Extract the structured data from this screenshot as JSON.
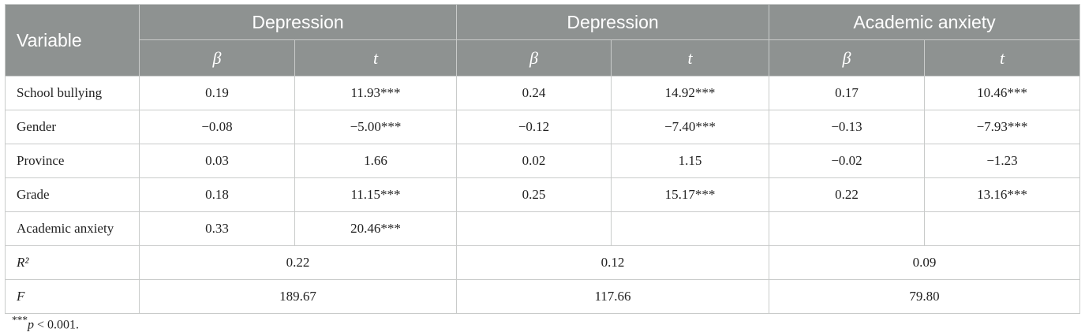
{
  "header": {
    "variable_label": "Variable",
    "groups": [
      "Depression",
      "Depression",
      "Academic anxiety"
    ],
    "sub_labels": [
      "β",
      "t",
      "β",
      "t",
      "β",
      "t"
    ]
  },
  "rows": [
    {
      "variable": "School bullying",
      "cells": [
        "0.19",
        "11.93***",
        "0.24",
        "14.92***",
        "0.17",
        "10.46***"
      ]
    },
    {
      "variable": "Gender",
      "cells": [
        "−0.08",
        "−5.00***",
        "−0.12",
        "−7.40***",
        "−0.13",
        "−7.93***"
      ]
    },
    {
      "variable": "Province",
      "cells": [
        "0.03",
        "1.66",
        "0.02",
        "1.15",
        "−0.02",
        "−1.23"
      ]
    },
    {
      "variable": "Grade",
      "cells": [
        "0.18",
        "11.15***",
        "0.25",
        "15.17***",
        "0.22",
        "13.16***"
      ]
    },
    {
      "variable": "Academic anxiety",
      "cells": [
        "0.33",
        "20.46***",
        "",
        "",
        "",
        ""
      ]
    }
  ],
  "summary": [
    {
      "label": "R²",
      "values": [
        "0.22",
        "0.12",
        "0.09"
      ]
    },
    {
      "label": "F",
      "values": [
        "189.67",
        "117.66",
        "79.80"
      ]
    }
  ],
  "footnote": {
    "stars": "***",
    "p": "p",
    "rest": " < 0.001."
  }
}
